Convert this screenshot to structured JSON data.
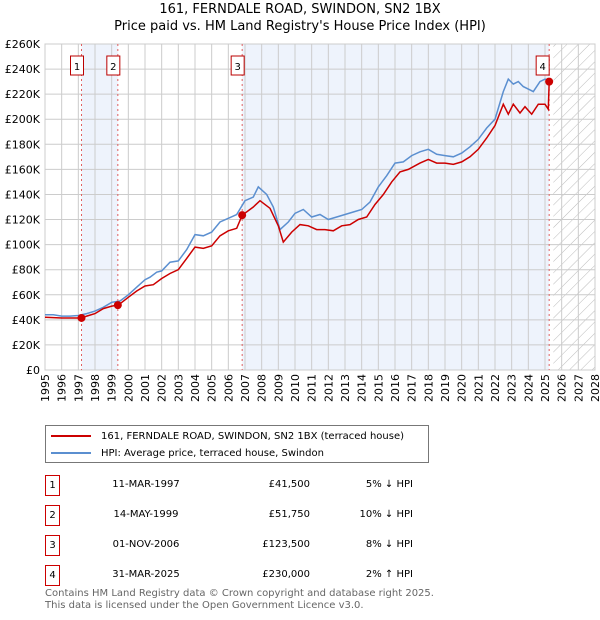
{
  "title": "161, FERNDALE ROAD, SWINDON, SN2 1BX",
  "subtitle": "Price paid vs. HM Land Registry's House Price Index (HPI)",
  "colors": {
    "property": "#cc0000",
    "hpi": "#5b8fd0",
    "shade": "#eef3fc",
    "grid": "#cccccc"
  },
  "chart_data": {
    "type": "line",
    "xlim": [
      1995,
      2028
    ],
    "ylim": [
      0,
      260000
    ],
    "x_ticks": [
      "1995",
      "1996",
      "1997",
      "1998",
      "1999",
      "2000",
      "2001",
      "2002",
      "2003",
      "2004",
      "2005",
      "2006",
      "2007",
      "2008",
      "2009",
      "2010",
      "2011",
      "2012",
      "2013",
      "2014",
      "2015",
      "2016",
      "2017",
      "2018",
      "2019",
      "2020",
      "2021",
      "2022",
      "2023",
      "2024",
      "2025",
      "2026",
      "2027",
      "2028"
    ],
    "y_ticks": [
      "£0",
      "£20K",
      "£40K",
      "£60K",
      "£80K",
      "£100K",
      "£120K",
      "£140K",
      "£160K",
      "£180K",
      "£200K",
      "£220K",
      "£240K",
      "£260K"
    ],
    "grid": true,
    "forecast_hatch_from": 2025.5,
    "series": [
      {
        "name": "161, FERNDALE ROAD, SWINDON, SN2 1BX (terraced house)",
        "color": "#cc0000",
        "points": [
          [
            1995,
            42
          ],
          [
            1996,
            41.5
          ],
          [
            1997,
            41.5
          ],
          [
            1997.2,
            41.5
          ],
          [
            1997.5,
            43
          ],
          [
            1998,
            45
          ],
          [
            1998.5,
            49
          ],
          [
            1999,
            51
          ],
          [
            1999.4,
            51.75
          ],
          [
            2000,
            58
          ],
          [
            2000.5,
            63
          ],
          [
            2001,
            67
          ],
          [
            2001.5,
            68
          ],
          [
            2002,
            73
          ],
          [
            2002.5,
            77
          ],
          [
            2003,
            80
          ],
          [
            2003.5,
            89
          ],
          [
            2004,
            98
          ],
          [
            2004.5,
            97
          ],
          [
            2005,
            99
          ],
          [
            2005.5,
            107
          ],
          [
            2006,
            111
          ],
          [
            2006.5,
            113
          ],
          [
            2006.83,
            123.5
          ],
          [
            2007.5,
            130
          ],
          [
            2007.9,
            135
          ],
          [
            2008.5,
            129
          ],
          [
            2009,
            115
          ],
          [
            2009.3,
            102
          ],
          [
            2009.8,
            110
          ],
          [
            2010.3,
            116
          ],
          [
            2010.8,
            115
          ],
          [
            2011.3,
            112
          ],
          [
            2011.8,
            112
          ],
          [
            2012.3,
            111
          ],
          [
            2012.8,
            115
          ],
          [
            2013.3,
            116
          ],
          [
            2013.8,
            120
          ],
          [
            2014.3,
            122
          ],
          [
            2014.8,
            132
          ],
          [
            2015.3,
            140
          ],
          [
            2015.8,
            150
          ],
          [
            2016.3,
            158
          ],
          [
            2016.8,
            160
          ],
          [
            2017.5,
            165
          ],
          [
            2018,
            168
          ],
          [
            2018.5,
            165
          ],
          [
            2019,
            165
          ],
          [
            2019.5,
            164
          ],
          [
            2020,
            166
          ],
          [
            2020.5,
            170
          ],
          [
            2021,
            176
          ],
          [
            2021.5,
            185
          ],
          [
            2022,
            195
          ],
          [
            2022.5,
            212
          ],
          [
            2022.8,
            204
          ],
          [
            2023.1,
            212
          ],
          [
            2023.5,
            205
          ],
          [
            2023.8,
            210
          ],
          [
            2024.2,
            204
          ],
          [
            2024.6,
            212
          ],
          [
            2025,
            212
          ],
          [
            2025.2,
            208
          ],
          [
            2025.25,
            230
          ]
        ]
      },
      {
        "name": "HPI: Average price, terraced house, Swindon",
        "color": "#5b8fd0",
        "points": [
          [
            1995,
            44
          ],
          [
            1995.5,
            44
          ],
          [
            1996,
            43
          ],
          [
            1996.5,
            43
          ],
          [
            1997,
            43.5
          ],
          [
            1997.5,
            45
          ],
          [
            1998,
            47
          ],
          [
            1998.5,
            50
          ],
          [
            1999,
            54
          ],
          [
            1999.5,
            55
          ],
          [
            2000,
            60
          ],
          [
            2000.5,
            66
          ],
          [
            2001,
            72
          ],
          [
            2001.3,
            74
          ],
          [
            2001.7,
            78
          ],
          [
            2002,
            79
          ],
          [
            2002.5,
            86
          ],
          [
            2003,
            87
          ],
          [
            2003.5,
            96
          ],
          [
            2004,
            108
          ],
          [
            2004.5,
            107
          ],
          [
            2005,
            110
          ],
          [
            2005.5,
            118
          ],
          [
            2006,
            121
          ],
          [
            2006.5,
            124
          ],
          [
            2007,
            135
          ],
          [
            2007.5,
            138
          ],
          [
            2007.8,
            146
          ],
          [
            2008.3,
            140
          ],
          [
            2008.7,
            130
          ],
          [
            2009.1,
            112
          ],
          [
            2009.6,
            118
          ],
          [
            2010,
            125
          ],
          [
            2010.5,
            128
          ],
          [
            2011,
            122
          ],
          [
            2011.5,
            124
          ],
          [
            2012,
            120
          ],
          [
            2012.5,
            122
          ],
          [
            2013,
            124
          ],
          [
            2013.5,
            126
          ],
          [
            2014,
            128
          ],
          [
            2014.5,
            134
          ],
          [
            2015,
            146
          ],
          [
            2015.5,
            155
          ],
          [
            2016,
            165
          ],
          [
            2016.5,
            166
          ],
          [
            2017,
            171
          ],
          [
            2017.5,
            174
          ],
          [
            2018,
            176
          ],
          [
            2018.5,
            172
          ],
          [
            2019,
            171
          ],
          [
            2019.5,
            170
          ],
          [
            2020,
            173
          ],
          [
            2020.5,
            178
          ],
          [
            2021,
            184
          ],
          [
            2021.5,
            193
          ],
          [
            2022,
            200
          ],
          [
            2022.5,
            222
          ],
          [
            2022.8,
            232
          ],
          [
            2023.1,
            228
          ],
          [
            2023.4,
            230
          ],
          [
            2023.7,
            226
          ],
          [
            2024,
            224
          ],
          [
            2024.3,
            222
          ],
          [
            2024.7,
            230
          ],
          [
            2025,
            232
          ],
          [
            2025.4,
            231
          ]
        ]
      }
    ],
    "shaded_ranges": [
      [
        1997.19,
        1999.37
      ],
      [
        2006.83,
        2025.25
      ]
    ],
    "sales": [
      {
        "label": "1",
        "x": 1997.19,
        "y": 41500
      },
      {
        "label": "2",
        "x": 1999.37,
        "y": 51750
      },
      {
        "label": "3",
        "x": 2006.83,
        "y": 123500
      },
      {
        "label": "4",
        "x": 2025.25,
        "y": 230000
      }
    ]
  },
  "legend": {
    "property": "161, FERNDALE ROAD, SWINDON, SN2 1BX (terraced house)",
    "hpi": "HPI: Average price, terraced house, Swindon"
  },
  "transactions": [
    {
      "num": "1",
      "date": "11-MAR-1997",
      "price": "£41,500",
      "hpi": "5% ↓ HPI"
    },
    {
      "num": "2",
      "date": "14-MAY-1999",
      "price": "£51,750",
      "hpi": "10% ↓ HPI"
    },
    {
      "num": "3",
      "date": "01-NOV-2006",
      "price": "£123,500",
      "hpi": "8% ↓ HPI"
    },
    {
      "num": "4",
      "date": "31-MAR-2025",
      "price": "£230,000",
      "hpi": "2% ↑ HPI"
    }
  ],
  "footer": {
    "line1": "Contains HM Land Registry data © Crown copyright and database right 2025.",
    "line2": "This data is licensed under the Open Government Licence v3.0."
  }
}
